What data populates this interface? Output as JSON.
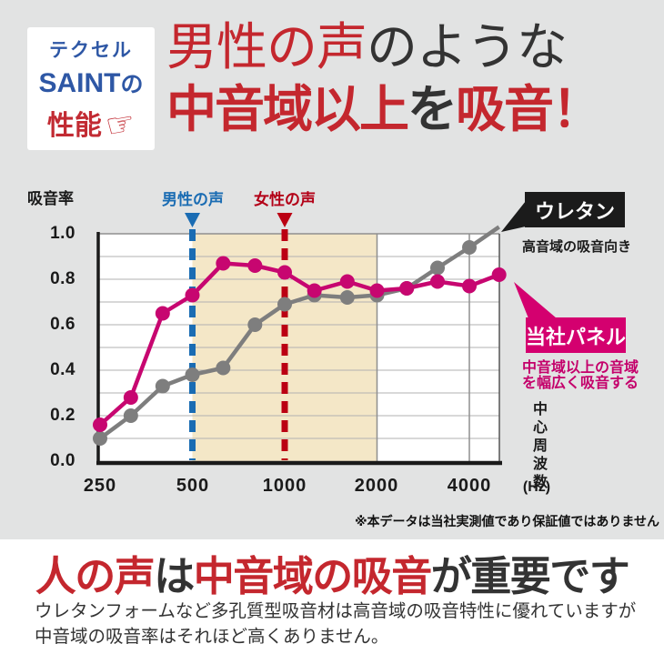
{
  "colors": {
    "bg_gray": "#e2e3e3",
    "accent_red": "#c4272e",
    "magenta": "#c70670",
    "magenta_box": "#d4006f",
    "blue": "#1a6cb3",
    "dash_red": "#bb0013",
    "gray_line": "#7e7e7e",
    "band": "#f4e7c7",
    "black_box": "#1b1b1b"
  },
  "badge": {
    "line1": "テクセル",
    "line2_strong": "SAINT",
    "line2_suffix": "の",
    "line3": "性能",
    "hand_icon": "☞"
  },
  "title": {
    "line1_red": "男性の声",
    "line1_dark": "のような",
    "line2_red1": "中音域以上",
    "line2_dark": "を",
    "line2_red2": "吸音！"
  },
  "chart": {
    "y_axis_title": "吸音率",
    "male_voice_label": "男性の声",
    "female_voice_label": "女性の声",
    "y_ticks": [
      "1.0",
      "0.8",
      "0.6",
      "0.4",
      "0.2",
      "0.0"
    ],
    "x_ticks": [
      "250",
      "500",
      "1000",
      "2000",
      "4000"
    ],
    "right_axis_label": "中心周波数",
    "right_axis_unit": "(Hz)",
    "urethane_label": "ウレタン",
    "urethane_desc": "高音域の吸音向き",
    "panel_label": "当社パネル",
    "panel_desc": "中音域以上の音域\nを幅広く吸音する",
    "note": "※本データは当社実測値であり保証値ではありません"
  },
  "chart_data": {
    "type": "line",
    "x_scale": "log",
    "x": [
      250,
      315,
      400,
      500,
      630,
      800,
      1000,
      1250,
      1600,
      2000,
      2500,
      3150,
      4000,
      5000
    ],
    "series": [
      {
        "name": "当社パネル",
        "color": "#c70670",
        "values": [
          0.16,
          0.28,
          0.65,
          0.73,
          0.87,
          0.86,
          0.83,
          0.75,
          0.79,
          0.75,
          0.76,
          0.79,
          0.77,
          0.82
        ]
      },
      {
        "name": "ウレタン",
        "color": "#7e7e7e",
        "values": [
          0.1,
          0.2,
          0.33,
          0.38,
          0.41,
          0.6,
          0.69,
          0.73,
          0.72,
          0.73,
          0.76,
          0.85,
          0.94,
          1.03
        ]
      }
    ],
    "ylim": [
      0,
      1.0
    ],
    "y_gridline_step": 0.1,
    "x_gridlines_hz": [
      2000,
      4000
    ],
    "highlight_band_hz": [
      500,
      2000
    ],
    "male_voice_hz": 500,
    "female_voice_hz": 1000,
    "xlabel": "中心周波数(Hz)",
    "ylabel": "吸音率",
    "grid": true
  },
  "heading": {
    "p1_red": "人の声",
    "p2_dark": "は",
    "p3_red": "中音域の吸音",
    "p4_dark": "が重要です"
  },
  "paragraph": "ウレタンフォームなど多孔質型吸音材は高音域の吸音特性に優れていますが\n中音域の吸音率はそれほど高くありません。"
}
